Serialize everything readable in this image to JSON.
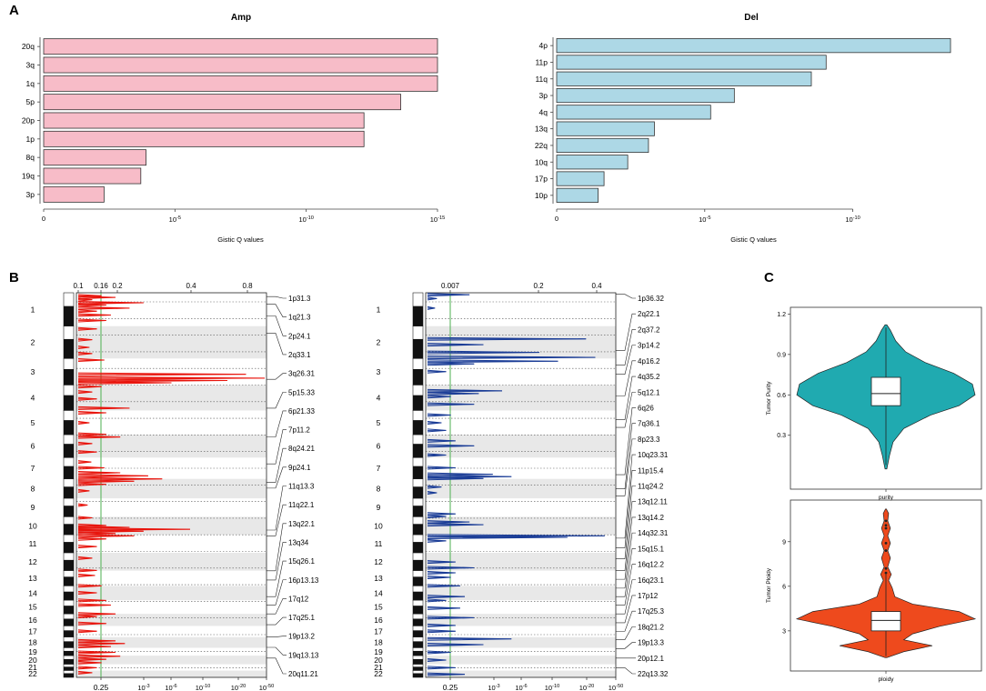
{
  "panel_labels": {
    "a": "A",
    "b": "B",
    "c": "C"
  },
  "colors": {
    "amp_bar": "#f7bcc8",
    "del_bar": "#add8e6",
    "amp_line": "#e8140c",
    "del_line": "#1a3c96",
    "threshold": "#4caf50",
    "band": "#e8e8e8",
    "violin_purity": "#20aab0",
    "violin_ploidy": "#ee4a1d"
  },
  "chart_data": [
    {
      "id": "amp-bar",
      "type": "bar",
      "orientation": "horizontal",
      "title": "Amp",
      "xlabel": "Gistic Q values",
      "ylabel": "",
      "x_scale": "-log10",
      "xlim_exponent": [
        0,
        15
      ],
      "x_ticks": [
        {
          "label": "0"
        },
        {
          "base": "10",
          "exp": "-5"
        },
        {
          "base": "10",
          "exp": "-10"
        },
        {
          "base": "10",
          "exp": "-15"
        }
      ],
      "categories": [
        "20q",
        "3q",
        "1q",
        "5p",
        "20p",
        "1p",
        "8q",
        "19q",
        "3p"
      ],
      "values_neglog10": [
        15,
        15,
        15,
        13.6,
        12.2,
        12.2,
        3.9,
        3.7,
        2.3
      ]
    },
    {
      "id": "del-bar",
      "type": "bar",
      "orientation": "horizontal",
      "title": "Del",
      "xlabel": "Gistic Q values",
      "ylabel": "",
      "x_scale": "-log10",
      "xlim_exponent": [
        0,
        13.3
      ],
      "x_ticks": [
        {
          "label": "0"
        },
        {
          "base": "10",
          "exp": "-5"
        },
        {
          "base": "10",
          "exp": "-10"
        }
      ],
      "categories": [
        "4p",
        "11p",
        "11q",
        "3p",
        "4q",
        "13q",
        "22q",
        "10q",
        "17p",
        "10p"
      ],
      "values_neglog10": [
        13.3,
        9.1,
        8.6,
        6.0,
        5.2,
        3.3,
        3.1,
        2.4,
        1.6,
        1.4
      ]
    },
    {
      "id": "amp-genome",
      "type": "line",
      "title": "",
      "xlabel": "",
      "ylabel": "",
      "chromosomes": [
        "1",
        "2",
        "3",
        "4",
        "5",
        "6",
        "7",
        "8",
        "9",
        "10",
        "11",
        "12",
        "13",
        "14",
        "15",
        "16",
        "17",
        "18",
        "19",
        "20",
        "21",
        "22"
      ],
      "chrom_lengths": [
        249,
        242,
        198,
        190,
        181,
        171,
        159,
        145,
        138,
        134,
        135,
        133,
        114,
        107,
        102,
        90,
        83,
        80,
        59,
        64,
        47,
        51
      ],
      "top_ticks": [
        "0.1",
        "0.16",
        "0.2",
        "0.4",
        "0.8"
      ],
      "bottom_ticks": [
        {
          "label": "0.25"
        },
        {
          "base": "10",
          "exp": "-3"
        },
        {
          "base": "10",
          "exp": "-6"
        },
        {
          "base": "10",
          "exp": "-10"
        },
        {
          "base": "10",
          "exp": "-20"
        },
        {
          "base": "10",
          "exp": "-50"
        }
      ],
      "threshold_q": 0.25,
      "peaks": [
        {
          "gpos": 0.008,
          "v": 0.25
        },
        {
          "gpos": 0.012,
          "v": 0.4
        },
        {
          "gpos": 0.018,
          "v": 0.15
        },
        {
          "gpos": 0.026,
          "v": 0.7
        },
        {
          "gpos": 0.032,
          "v": 0.3
        },
        {
          "gpos": 0.04,
          "v": 0.55
        },
        {
          "gpos": 0.048,
          "v": 0.2
        },
        {
          "gpos": 0.058,
          "v": 0.35
        },
        {
          "gpos": 0.072,
          "v": 0.3
        },
        {
          "gpos": 0.094,
          "v": 0.2
        },
        {
          "gpos": 0.122,
          "v": 0.15
        },
        {
          "gpos": 0.142,
          "v": 0.12
        },
        {
          "gpos": 0.158,
          "v": 0.15
        },
        {
          "gpos": 0.175,
          "v": 0.28
        },
        {
          "gpos": 0.212,
          "v": 1.8
        },
        {
          "gpos": 0.222,
          "v": 2.0
        },
        {
          "gpos": 0.228,
          "v": 1.6
        },
        {
          "gpos": 0.234,
          "v": 1.0
        },
        {
          "gpos": 0.244,
          "v": 0.25
        },
        {
          "gpos": 0.258,
          "v": 0.15
        },
        {
          "gpos": 0.276,
          "v": 0.2
        },
        {
          "gpos": 0.3,
          "v": 0.55
        },
        {
          "gpos": 0.312,
          "v": 0.3
        },
        {
          "gpos": 0.338,
          "v": 0.12
        },
        {
          "gpos": 0.368,
          "v": 0.3
        },
        {
          "gpos": 0.375,
          "v": 0.45
        },
        {
          "gpos": 0.392,
          "v": 0.15
        },
        {
          "gpos": 0.414,
          "v": 0.2
        },
        {
          "gpos": 0.44,
          "v": 0.14
        },
        {
          "gpos": 0.455,
          "v": 0.28
        },
        {
          "gpos": 0.468,
          "v": 0.45
        },
        {
          "gpos": 0.476,
          "v": 0.75
        },
        {
          "gpos": 0.484,
          "v": 0.9
        },
        {
          "gpos": 0.49,
          "v": 0.6
        },
        {
          "gpos": 0.498,
          "v": 0.3
        },
        {
          "gpos": 0.515,
          "v": 0.12
        },
        {
          "gpos": 0.552,
          "v": 0.1
        },
        {
          "gpos": 0.585,
          "v": 0.15
        },
        {
          "gpos": 0.605,
          "v": 0.3
        },
        {
          "gpos": 0.61,
          "v": 0.55
        },
        {
          "gpos": 0.615,
          "v": 1.2
        },
        {
          "gpos": 0.62,
          "v": 0.7
        },
        {
          "gpos": 0.626,
          "v": 0.4
        },
        {
          "gpos": 0.632,
          "v": 0.6
        },
        {
          "gpos": 0.64,
          "v": 0.3
        },
        {
          "gpos": 0.66,
          "v": 0.2
        },
        {
          "gpos": 0.69,
          "v": 0.15
        },
        {
          "gpos": 0.722,
          "v": 0.2
        },
        {
          "gpos": 0.735,
          "v": 0.18
        },
        {
          "gpos": 0.762,
          "v": 0.25
        },
        {
          "gpos": 0.78,
          "v": 0.2
        },
        {
          "gpos": 0.8,
          "v": 0.3
        },
        {
          "gpos": 0.812,
          "v": 0.35
        },
        {
          "gpos": 0.835,
          "v": 0.4
        },
        {
          "gpos": 0.842,
          "v": 0.2
        },
        {
          "gpos": 0.86,
          "v": 0.3
        },
        {
          "gpos": 0.88,
          "v": 0.2
        },
        {
          "gpos": 0.905,
          "v": 0.4
        },
        {
          "gpos": 0.912,
          "v": 0.5
        },
        {
          "gpos": 0.92,
          "v": 0.35
        },
        {
          "gpos": 0.935,
          "v": 0.4
        },
        {
          "gpos": 0.945,
          "v": 0.45
        },
        {
          "gpos": 0.953,
          "v": 0.3
        },
        {
          "gpos": 0.962,
          "v": 0.25
        },
        {
          "gpos": 0.975,
          "v": 0.2
        },
        {
          "gpos": 0.988,
          "v": 0.15
        }
      ],
      "annotations": [
        {
          "label": "1p31.3",
          "gpos": 0.01
        },
        {
          "label": "1q21.3",
          "gpos": 0.03
        },
        {
          "label": "2p24.1",
          "gpos": 0.06
        },
        {
          "label": "2q33.1",
          "gpos": 0.105
        },
        {
          "label": "3q26.31",
          "gpos": 0.225
        },
        {
          "label": "5p15.33",
          "gpos": 0.3
        },
        {
          "label": "6p21.33",
          "gpos": 0.375
        },
        {
          "label": "7p11.2",
          "gpos": 0.445
        },
        {
          "label": "8q24.21",
          "gpos": 0.493
        },
        {
          "label": "9p24.1",
          "gpos": 0.508
        },
        {
          "label": "11q13.3",
          "gpos": 0.617
        },
        {
          "label": "11q22.1",
          "gpos": 0.632
        },
        {
          "label": "13q22.1",
          "gpos": 0.723
        },
        {
          "label": "13q34",
          "gpos": 0.747
        },
        {
          "label": "15q26.1",
          "gpos": 0.79
        },
        {
          "label": "16p13.13",
          "gpos": 0.812
        },
        {
          "label": "17q12",
          "gpos": 0.835
        },
        {
          "label": "17q25.1",
          "gpos": 0.863
        },
        {
          "label": "19p13.2",
          "gpos": 0.895
        },
        {
          "label": "19q13.13",
          "gpos": 0.922
        },
        {
          "label": "20q11.21",
          "gpos": 0.95
        }
      ]
    },
    {
      "id": "del-genome",
      "type": "line",
      "title": "",
      "xlabel": "",
      "ylabel": "",
      "chromosomes": [
        "1",
        "2",
        "3",
        "4",
        "5",
        "6",
        "7",
        "8",
        "9",
        "10",
        "11",
        "12",
        "13",
        "14",
        "15",
        "16",
        "17",
        "18",
        "19",
        "20",
        "21",
        "22"
      ],
      "chrom_lengths": [
        249,
        242,
        198,
        190,
        181,
        171,
        159,
        145,
        138,
        134,
        135,
        133,
        114,
        107,
        102,
        90,
        83,
        80,
        59,
        64,
        47,
        51
      ],
      "top_ticks": [
        "0.007",
        "0.2",
        "0.4"
      ],
      "bottom_ticks": [
        {
          "label": "0.25"
        },
        {
          "base": "10",
          "exp": "-3"
        },
        {
          "base": "10",
          "exp": "-6"
        },
        {
          "base": "10",
          "exp": "-10"
        },
        {
          "base": "10",
          "exp": "-20"
        },
        {
          "base": "10",
          "exp": "-50"
        }
      ],
      "threshold_q": 0.25,
      "peaks": [
        {
          "gpos": 0.005,
          "v": 0.45
        },
        {
          "gpos": 0.015,
          "v": 0.1
        },
        {
          "gpos": 0.04,
          "v": 0.08
        },
        {
          "gpos": 0.12,
          "v": 1.7
        },
        {
          "gpos": 0.135,
          "v": 0.6
        },
        {
          "gpos": 0.155,
          "v": 1.2
        },
        {
          "gpos": 0.168,
          "v": 1.8
        },
        {
          "gpos": 0.178,
          "v": 1.4
        },
        {
          "gpos": 0.185,
          "v": 0.5
        },
        {
          "gpos": 0.205,
          "v": 0.2
        },
        {
          "gpos": 0.255,
          "v": 0.8
        },
        {
          "gpos": 0.262,
          "v": 0.55
        },
        {
          "gpos": 0.27,
          "v": 0.25
        },
        {
          "gpos": 0.29,
          "v": 0.5
        },
        {
          "gpos": 0.318,
          "v": 0.25
        },
        {
          "gpos": 0.338,
          "v": 0.15
        },
        {
          "gpos": 0.358,
          "v": 0.2
        },
        {
          "gpos": 0.385,
          "v": 0.3
        },
        {
          "gpos": 0.398,
          "v": 0.5
        },
        {
          "gpos": 0.422,
          "v": 0.2
        },
        {
          "gpos": 0.455,
          "v": 0.3
        },
        {
          "gpos": 0.472,
          "v": 0.7
        },
        {
          "gpos": 0.478,
          "v": 0.9
        },
        {
          "gpos": 0.483,
          "v": 0.6
        },
        {
          "gpos": 0.505,
          "v": 0.15
        },
        {
          "gpos": 0.52,
          "v": 0.1
        },
        {
          "gpos": 0.575,
          "v": 0.3
        },
        {
          "gpos": 0.582,
          "v": 0.2
        },
        {
          "gpos": 0.596,
          "v": 0.45
        },
        {
          "gpos": 0.603,
          "v": 0.6
        },
        {
          "gpos": 0.632,
          "v": 1.9
        },
        {
          "gpos": 0.636,
          "v": 1.5
        },
        {
          "gpos": 0.645,
          "v": 0.2
        },
        {
          "gpos": 0.7,
          "v": 0.3
        },
        {
          "gpos": 0.715,
          "v": 0.5
        },
        {
          "gpos": 0.728,
          "v": 0.3
        },
        {
          "gpos": 0.74,
          "v": 0.25
        },
        {
          "gpos": 0.762,
          "v": 0.35
        },
        {
          "gpos": 0.79,
          "v": 0.4
        },
        {
          "gpos": 0.8,
          "v": 0.2
        },
        {
          "gpos": 0.82,
          "v": 0.35
        },
        {
          "gpos": 0.845,
          "v": 0.5
        },
        {
          "gpos": 0.865,
          "v": 0.3
        },
        {
          "gpos": 0.88,
          "v": 0.3
        },
        {
          "gpos": 0.9,
          "v": 0.9
        },
        {
          "gpos": 0.915,
          "v": 0.6
        },
        {
          "gpos": 0.935,
          "v": 0.25
        },
        {
          "gpos": 0.955,
          "v": 0.2
        },
        {
          "gpos": 0.975,
          "v": 0.3
        },
        {
          "gpos": 0.992,
          "v": 0.4
        }
      ],
      "annotations": [
        {
          "label": "1p36.32",
          "gpos": 0.004
        },
        {
          "label": "2q22.1",
          "gpos": 0.15
        },
        {
          "label": "2q37.2",
          "gpos": 0.188
        },
        {
          "label": "3p14.2",
          "gpos": 0.212
        },
        {
          "label": "4p16.2",
          "gpos": 0.268
        },
        {
          "label": "4q35.2",
          "gpos": 0.33
        },
        {
          "label": "5q12.1",
          "gpos": 0.35
        },
        {
          "label": "6q26",
          "gpos": 0.473
        },
        {
          "label": "7q36.1",
          "gpos": 0.51
        },
        {
          "label": "8p23.3",
          "gpos": 0.528
        },
        {
          "label": "10q23.31",
          "gpos": 0.638
        },
        {
          "label": "11p15.4",
          "gpos": 0.663
        },
        {
          "label": "11q24.2",
          "gpos": 0.692
        },
        {
          "label": "13q12.11",
          "gpos": 0.722
        },
        {
          "label": "13q14.2",
          "gpos": 0.745
        },
        {
          "label": "14q32.31",
          "gpos": 0.768
        },
        {
          "label": "15q15.1",
          "gpos": 0.79
        },
        {
          "label": "16q12.2",
          "gpos": 0.812
        },
        {
          "label": "16q23.1",
          "gpos": 0.835
        },
        {
          "label": "17p12",
          "gpos": 0.858
        },
        {
          "label": "17q25.3",
          "gpos": 0.88
        },
        {
          "label": "18q21.2",
          "gpos": 0.902
        },
        {
          "label": "19p13.3",
          "gpos": 0.925
        },
        {
          "label": "20p12.1",
          "gpos": 0.95
        },
        {
          "label": "22q13.32",
          "gpos": 0.975
        }
      ]
    },
    {
      "id": "violin-purity",
      "type": "violin",
      "title": "",
      "xlabel": "purity",
      "ylabel": "Tumor Purity",
      "ylim": [
        -0.1,
        1.25
      ],
      "y_ticks": [
        "0.3",
        "0.6",
        "0.9",
        "1.2"
      ],
      "box": {
        "q1": 0.52,
        "median": 0.61,
        "q3": 0.73,
        "whisker_low": 0.08,
        "whisker_high": 1.1
      },
      "density": [
        {
          "y": 0.05,
          "w": 0.01
        },
        {
          "y": 0.15,
          "w": 0.04
        },
        {
          "y": 0.25,
          "w": 0.08
        },
        {
          "y": 0.35,
          "w": 0.2
        },
        {
          "y": 0.45,
          "w": 0.5
        },
        {
          "y": 0.52,
          "w": 0.82
        },
        {
          "y": 0.6,
          "w": 1.0
        },
        {
          "y": 0.68,
          "w": 0.97
        },
        {
          "y": 0.76,
          "w": 0.76
        },
        {
          "y": 0.84,
          "w": 0.44
        },
        {
          "y": 0.92,
          "w": 0.22
        },
        {
          "y": 1.0,
          "w": 0.11
        },
        {
          "y": 1.08,
          "w": 0.05
        },
        {
          "y": 1.12,
          "w": 0.01
        }
      ]
    },
    {
      "id": "violin-ploidy",
      "type": "violin",
      "title": "",
      "xlabel": "ploidy",
      "ylabel": "Tumor Ploidy",
      "ylim": [
        0.3,
        11.8
      ],
      "y_ticks": [
        "3",
        "6",
        "9"
      ],
      "box": {
        "q1": 3.0,
        "median": 3.7,
        "q3": 4.3,
        "whisker_low": 1.3,
        "whisker_high": 6.8
      },
      "density": [
        {
          "y": 1.2,
          "w": 0.01
        },
        {
          "y": 1.6,
          "w": 0.2
        },
        {
          "y": 2.0,
          "w": 0.52
        },
        {
          "y": 2.4,
          "w": 0.2
        },
        {
          "y": 2.8,
          "w": 0.3
        },
        {
          "y": 3.3,
          "w": 0.6
        },
        {
          "y": 3.8,
          "w": 1.0
        },
        {
          "y": 4.3,
          "w": 0.82
        },
        {
          "y": 4.8,
          "w": 0.3
        },
        {
          "y": 5.3,
          "w": 0.1
        },
        {
          "y": 5.9,
          "w": 0.07
        },
        {
          "y": 6.4,
          "w": 0.03
        },
        {
          "y": 6.8,
          "w": 0.06
        },
        {
          "y": 7.3,
          "w": 0.02
        },
        {
          "y": 7.9,
          "w": 0.05
        },
        {
          "y": 8.4,
          "w": 0.02
        },
        {
          "y": 8.9,
          "w": 0.05
        },
        {
          "y": 9.4,
          "w": 0.02
        },
        {
          "y": 9.9,
          "w": 0.05
        },
        {
          "y": 10.4,
          "w": 0.02
        },
        {
          "y": 10.9,
          "w": 0.03
        },
        {
          "y": 11.2,
          "w": 0.005
        }
      ],
      "outliers": [
        6.9,
        7.2,
        8.4,
        8.9,
        9.9,
        10.1,
        10.4
      ]
    }
  ]
}
